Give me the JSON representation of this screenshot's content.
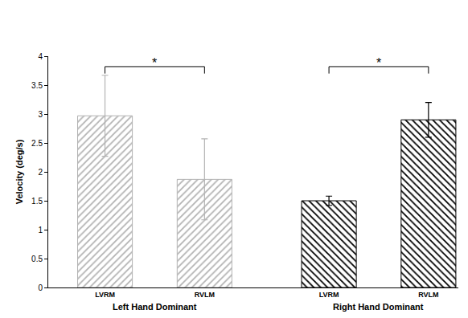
{
  "chart_data": {
    "type": "bar",
    "y_label": "Velocity (deg/s)",
    "categories": [
      "LVRM",
      "RVLM"
    ],
    "series": [
      {
        "name": "Left Hand Dominant",
        "color": "#b3b3b3",
        "values": [
          2.97,
          1.87
        ],
        "errors": [
          0.7,
          0.7
        ],
        "annotation": "*"
      },
      {
        "name": "Right Hand Dominant",
        "color": "#000000",
        "values": [
          1.5,
          2.9
        ],
        "errors": [
          0.08,
          0.3
        ],
        "annotation": "*"
      }
    ],
    "ylim": [
      0,
      4
    ],
    "yticks": [
      0,
      0.5,
      1,
      1.5,
      2,
      2.5,
      3,
      3.5,
      4
    ],
    "grid": false
  }
}
